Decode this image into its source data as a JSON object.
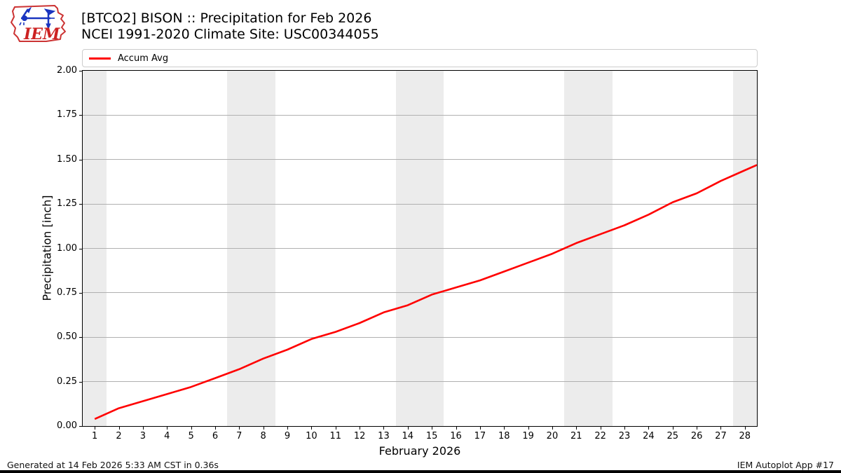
{
  "header": {
    "title_line1": "[BTCO2] BISON :: Precipitation for Feb 2026",
    "title_line2": "NCEI 1991-2020 Climate Site: USC00344055",
    "logo_text": "IEM"
  },
  "legend": {
    "items": [
      {
        "label": "Accum Avg",
        "color": "#ff0000"
      }
    ]
  },
  "chart_data": {
    "type": "line",
    "title": "[BTCO2] BISON :: Precipitation for Feb 2026",
    "subtitle": "NCEI 1991-2020 Climate Site: USC00344055",
    "xlabel": "February 2026",
    "ylabel": "Precipitation [inch]",
    "xlim": [
      0.5,
      28.5
    ],
    "ylim": [
      0.0,
      2.0
    ],
    "grid": "horizontal",
    "legend_position": "top",
    "x_ticks": [
      1,
      2,
      3,
      4,
      5,
      6,
      7,
      8,
      9,
      10,
      11,
      12,
      13,
      14,
      15,
      16,
      17,
      18,
      19,
      20,
      21,
      22,
      23,
      24,
      25,
      26,
      27,
      28
    ],
    "y_ticks": [
      {
        "value": 0.0,
        "label": "0.00"
      },
      {
        "value": 0.25,
        "label": "0.25"
      },
      {
        "value": 0.5,
        "label": "0.50"
      },
      {
        "value": 0.75,
        "label": "0.75"
      },
      {
        "value": 1.0,
        "label": "1.00"
      },
      {
        "value": 1.25,
        "label": "1.25"
      },
      {
        "value": 1.5,
        "label": "1.50"
      },
      {
        "value": 1.75,
        "label": "1.75"
      },
      {
        "value": 2.0,
        "label": "2.00"
      }
    ],
    "y_grid_values": [
      0.25,
      0.5,
      0.75,
      1.0,
      1.25,
      1.5,
      1.75
    ],
    "weekend_bands": [
      [
        0.5,
        1.5
      ],
      [
        6.5,
        8.5
      ],
      [
        13.5,
        15.5
      ],
      [
        20.5,
        22.5
      ],
      [
        27.5,
        28.5
      ]
    ],
    "band_color": "#ececec",
    "series": [
      {
        "name": "Accum Avg",
        "color": "#ff0000",
        "x": [
          1,
          2,
          3,
          4,
          5,
          6,
          7,
          8,
          9,
          10,
          11,
          12,
          13,
          14,
          15,
          16,
          17,
          18,
          19,
          20,
          21,
          22,
          23,
          24,
          25,
          26,
          27,
          28,
          28.5
        ],
        "y": [
          0.04,
          0.1,
          0.14,
          0.18,
          0.22,
          0.27,
          0.32,
          0.38,
          0.43,
          0.49,
          0.53,
          0.58,
          0.64,
          0.68,
          0.74,
          0.78,
          0.82,
          0.87,
          0.92,
          0.97,
          1.03,
          1.08,
          1.13,
          1.19,
          1.26,
          1.31,
          1.38,
          1.44,
          1.47
        ]
      }
    ]
  },
  "footer": {
    "generated": "Generated at 14 Feb 2026 5:33 AM CST in 0.36s",
    "app": "IEM Autoplot App #17"
  }
}
